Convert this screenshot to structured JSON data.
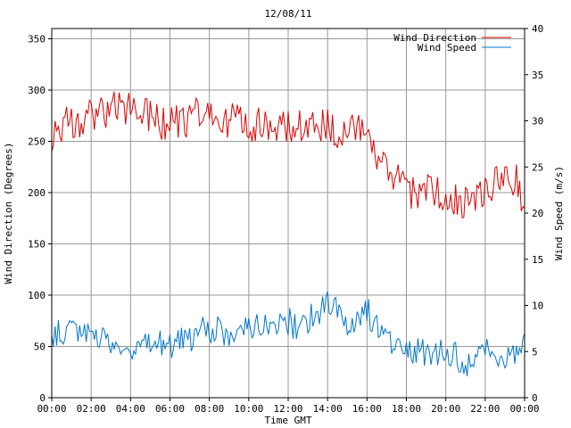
{
  "chart_data": {
    "type": "line",
    "title": "12/08/11",
    "xlabel": "Time GMT",
    "ylabel_left": "Wind Direction (Degrees)",
    "ylabel_right": "Wind Speed (m/s)",
    "xlim": [
      0,
      24
    ],
    "ylim_left": [
      0,
      360
    ],
    "ylim_right": [
      0,
      40
    ],
    "grid": true,
    "legend_position": "top-right",
    "x_ticks": [
      "00:00",
      "02:00",
      "04:00",
      "06:00",
      "08:00",
      "10:00",
      "12:00",
      "14:00",
      "16:00",
      "18:00",
      "20:00",
      "22:00",
      "00:00"
    ],
    "y_ticks_left": [
      0,
      50,
      100,
      150,
      200,
      250,
      300,
      350
    ],
    "y_ticks_right": [
      0,
      5,
      10,
      15,
      20,
      25,
      30,
      35,
      40
    ],
    "series": [
      {
        "name": "Wind Direction",
        "color": "#dd0000",
        "axis": "left",
        "x": [
          0,
          0.5,
          1,
          1.5,
          2,
          2.5,
          3,
          3.5,
          4,
          4.5,
          5,
          5.5,
          6,
          6.5,
          7,
          7.5,
          8,
          8.5,
          9,
          9.5,
          10,
          10.5,
          11,
          11.5,
          12,
          12.5,
          13,
          13.5,
          14,
          14.5,
          15,
          15.5,
          16,
          16.5,
          17,
          17.5,
          18,
          18.5,
          19,
          19.5,
          20,
          20.5,
          21,
          21.5,
          22,
          22.5,
          23,
          23.5,
          24
        ],
        "values": [
          258,
          266,
          270,
          272,
          275,
          278,
          281,
          280,
          284,
          280,
          275,
          266,
          268,
          270,
          272,
          275,
          275,
          272,
          270,
          272,
          268,
          267,
          264,
          263,
          262,
          263,
          267,
          268,
          265,
          259,
          259,
          262,
          255,
          225,
          220,
          216,
          203,
          200,
          203,
          200,
          185,
          190,
          195,
          193,
          205,
          208,
          215,
          215,
          185
        ]
      },
      {
        "name": "Wind Speed",
        "color": "#0077cc",
        "axis": "right",
        "x": [
          0,
          0.5,
          1,
          1.5,
          2,
          2.5,
          3,
          3.5,
          4,
          4.5,
          5,
          5.5,
          6,
          6.5,
          7,
          7.5,
          8,
          8.5,
          9,
          9.5,
          10,
          10.5,
          11,
          11.5,
          12,
          12.5,
          13,
          13.5,
          14,
          14.5,
          15,
          15.5,
          16,
          16.5,
          17,
          17.5,
          18,
          18.5,
          19,
          19.5,
          20,
          20.5,
          21,
          21.5,
          22,
          22.5,
          23,
          23.5,
          24
        ],
        "values": [
          6.5,
          7,
          7.5,
          7.5,
          7,
          6.5,
          6,
          5.5,
          5.5,
          5.5,
          5.5,
          5.7,
          5.8,
          6,
          6.5,
          7,
          7.5,
          7.5,
          7,
          7,
          8,
          8.2,
          8.3,
          8,
          8.2,
          7.8,
          8.5,
          9,
          10,
          9.5,
          8,
          9,
          9.5,
          7.5,
          6.5,
          6,
          5.5,
          5,
          5,
          5,
          4.5,
          4.5,
          3.5,
          4,
          5,
          4.8,
          4.5,
          4.5,
          7
        ]
      }
    ]
  }
}
